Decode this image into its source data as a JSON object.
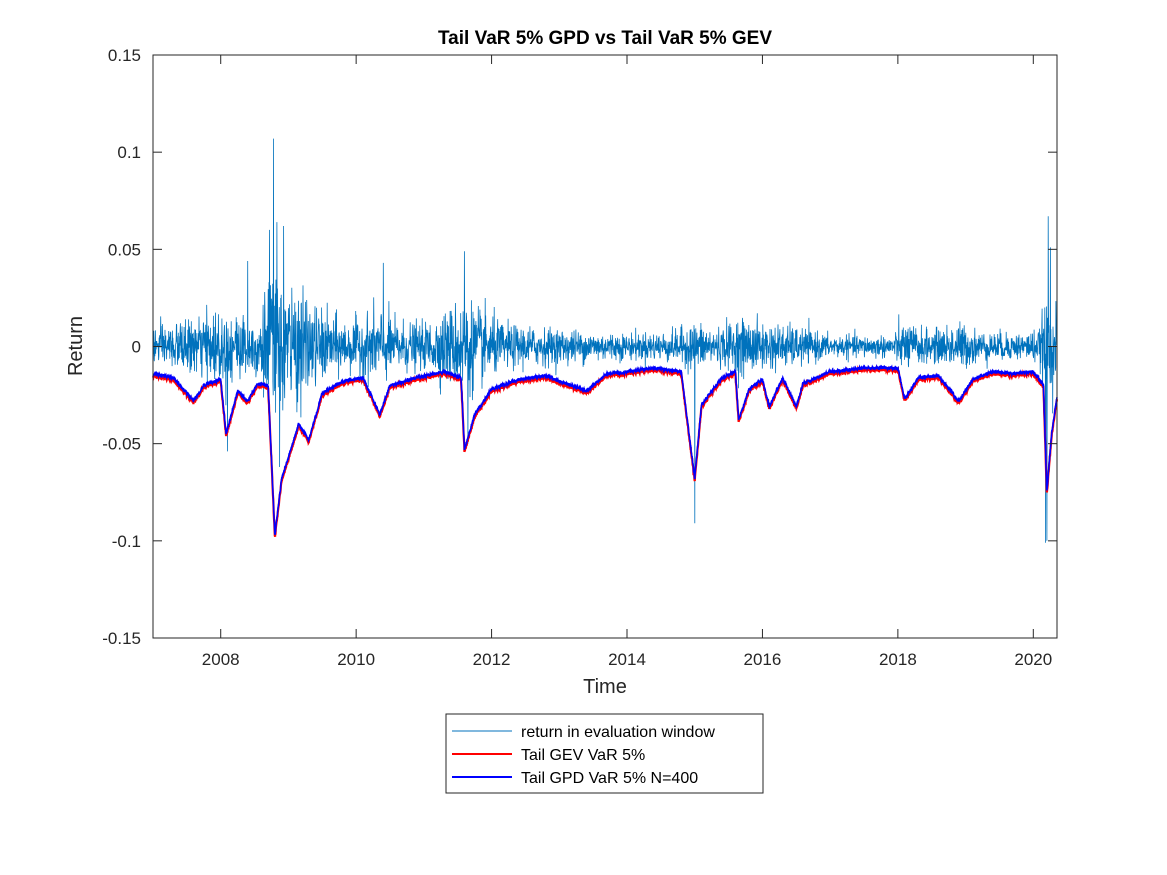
{
  "chart_data": {
    "type": "line",
    "title": "Tail VaR 5% GPD vs Tail VaR 5% GEV",
    "xlabel": "Time",
    "ylabel": "Return",
    "xlim": [
      2007.0,
      2020.35
    ],
    "ylim": [
      -0.15,
      0.15
    ],
    "x_ticks": [
      2008,
      2010,
      2012,
      2014,
      2016,
      2018,
      2020
    ],
    "x_tick_labels": [
      "2008",
      "2010",
      "2012",
      "2014",
      "2016",
      "2018",
      "2020"
    ],
    "y_ticks": [
      -0.15,
      -0.1,
      -0.05,
      0,
      0.05,
      0.1,
      0.15
    ],
    "y_tick_labels": [
      "-0.15",
      "-0.1",
      "-0.05",
      "0",
      "0.05",
      "0.1",
      "0.15"
    ],
    "grid": false,
    "legend_position": "below",
    "series": [
      {
        "name": "return in evaluation window",
        "color": "#0072BD",
        "style": "volatile-returns",
        "volatility_profile": [
          [
            2007.0,
            0.009
          ],
          [
            2007.5,
            0.011
          ],
          [
            2007.9,
            0.016
          ],
          [
            2008.1,
            0.017
          ],
          [
            2008.5,
            0.013
          ],
          [
            2008.75,
            0.033
          ],
          [
            2008.95,
            0.03
          ],
          [
            2009.2,
            0.024
          ],
          [
            2009.5,
            0.016
          ],
          [
            2009.9,
            0.011
          ],
          [
            2010.35,
            0.017
          ],
          [
            2010.6,
            0.012
          ],
          [
            2011.0,
            0.01
          ],
          [
            2011.6,
            0.022
          ],
          [
            2011.9,
            0.016
          ],
          [
            2012.2,
            0.01
          ],
          [
            2013.0,
            0.008
          ],
          [
            2014.0,
            0.006
          ],
          [
            2014.7,
            0.007
          ],
          [
            2015.0,
            0.011
          ],
          [
            2015.3,
            0.008
          ],
          [
            2015.65,
            0.013
          ],
          [
            2016.0,
            0.011
          ],
          [
            2016.5,
            0.009
          ],
          [
            2017.0,
            0.005
          ],
          [
            2017.9,
            0.005
          ],
          [
            2018.1,
            0.011
          ],
          [
            2018.5,
            0.007
          ],
          [
            2018.9,
            0.011
          ],
          [
            2019.2,
            0.007
          ],
          [
            2019.8,
            0.006
          ],
          [
            2020.1,
            0.008
          ],
          [
            2020.2,
            0.03
          ],
          [
            2020.3,
            0.02
          ],
          [
            2020.35,
            0.016
          ]
        ],
        "spikes": [
          [
            2008.78,
            0.107
          ],
          [
            2008.83,
            0.064
          ],
          [
            2008.87,
            -0.062
          ],
          [
            2008.72,
            0.06
          ],
          [
            2008.93,
            0.062
          ],
          [
            2008.1,
            -0.054
          ],
          [
            2008.4,
            0.044
          ],
          [
            2010.4,
            0.043
          ],
          [
            2011.6,
            0.049
          ],
          [
            2011.65,
            -0.05
          ],
          [
            2015.0,
            -0.091
          ],
          [
            2020.18,
            -0.101
          ],
          [
            2020.22,
            0.067
          ],
          [
            2020.25,
            0.051
          ],
          [
            2020.2,
            -0.1
          ]
        ]
      },
      {
        "name": "Tail GEV VaR 5%",
        "color": "#FF0000",
        "style": "var-band",
        "offset": -0.001,
        "profile": [
          [
            2007.0,
            -0.014
          ],
          [
            2007.3,
            -0.016
          ],
          [
            2007.6,
            -0.028
          ],
          [
            2007.75,
            -0.02
          ],
          [
            2008.0,
            -0.017
          ],
          [
            2008.08,
            -0.045
          ],
          [
            2008.25,
            -0.023
          ],
          [
            2008.4,
            -0.028
          ],
          [
            2008.55,
            -0.019
          ],
          [
            2008.7,
            -0.02
          ],
          [
            2008.8,
            -0.097
          ],
          [
            2008.9,
            -0.068
          ],
          [
            2009.0,
            -0.057
          ],
          [
            2009.15,
            -0.04
          ],
          [
            2009.3,
            -0.048
          ],
          [
            2009.5,
            -0.024
          ],
          [
            2009.8,
            -0.018
          ],
          [
            2010.1,
            -0.016
          ],
          [
            2010.35,
            -0.035
          ],
          [
            2010.5,
            -0.02
          ],
          [
            2010.9,
            -0.016
          ],
          [
            2011.3,
            -0.013
          ],
          [
            2011.55,
            -0.016
          ],
          [
            2011.6,
            -0.053
          ],
          [
            2011.75,
            -0.035
          ],
          [
            2012.0,
            -0.022
          ],
          [
            2012.4,
            -0.017
          ],
          [
            2012.8,
            -0.015
          ],
          [
            2013.4,
            -0.023
          ],
          [
            2013.7,
            -0.014
          ],
          [
            2014.0,
            -0.013
          ],
          [
            2014.4,
            -0.011
          ],
          [
            2014.8,
            -0.013
          ],
          [
            2015.0,
            -0.068
          ],
          [
            2015.1,
            -0.03
          ],
          [
            2015.4,
            -0.016
          ],
          [
            2015.6,
            -0.013
          ],
          [
            2015.65,
            -0.038
          ],
          [
            2015.8,
            -0.022
          ],
          [
            2016.0,
            -0.017
          ],
          [
            2016.1,
            -0.031
          ],
          [
            2016.3,
            -0.016
          ],
          [
            2016.5,
            -0.031
          ],
          [
            2016.6,
            -0.019
          ],
          [
            2017.0,
            -0.013
          ],
          [
            2017.5,
            -0.011
          ],
          [
            2018.0,
            -0.011
          ],
          [
            2018.1,
            -0.027
          ],
          [
            2018.3,
            -0.016
          ],
          [
            2018.6,
            -0.015
          ],
          [
            2018.9,
            -0.028
          ],
          [
            2019.1,
            -0.017
          ],
          [
            2019.4,
            -0.013
          ],
          [
            2019.7,
            -0.014
          ],
          [
            2020.0,
            -0.013
          ],
          [
            2020.15,
            -0.02
          ],
          [
            2020.2,
            -0.075
          ],
          [
            2020.27,
            -0.045
          ],
          [
            2020.35,
            -0.026
          ]
        ]
      },
      {
        "name": "Tail GPD VaR 5% N=400",
        "color": "#0000FF",
        "style": "var-band",
        "offset": 0.0,
        "profile": [
          [
            2007.0,
            -0.014
          ],
          [
            2007.3,
            -0.016
          ],
          [
            2007.6,
            -0.028
          ],
          [
            2007.75,
            -0.02
          ],
          [
            2008.0,
            -0.017
          ],
          [
            2008.08,
            -0.045
          ],
          [
            2008.25,
            -0.023
          ],
          [
            2008.4,
            -0.028
          ],
          [
            2008.55,
            -0.019
          ],
          [
            2008.7,
            -0.02
          ],
          [
            2008.8,
            -0.097
          ],
          [
            2008.9,
            -0.068
          ],
          [
            2009.0,
            -0.057
          ],
          [
            2009.15,
            -0.04
          ],
          [
            2009.3,
            -0.048
          ],
          [
            2009.5,
            -0.024
          ],
          [
            2009.8,
            -0.018
          ],
          [
            2010.1,
            -0.016
          ],
          [
            2010.35,
            -0.035
          ],
          [
            2010.5,
            -0.02
          ],
          [
            2010.9,
            -0.016
          ],
          [
            2011.3,
            -0.013
          ],
          [
            2011.55,
            -0.016
          ],
          [
            2011.6,
            -0.053
          ],
          [
            2011.75,
            -0.035
          ],
          [
            2012.0,
            -0.022
          ],
          [
            2012.4,
            -0.017
          ],
          [
            2012.8,
            -0.015
          ],
          [
            2013.4,
            -0.023
          ],
          [
            2013.7,
            -0.014
          ],
          [
            2014.0,
            -0.013
          ],
          [
            2014.4,
            -0.011
          ],
          [
            2014.8,
            -0.013
          ],
          [
            2015.0,
            -0.068
          ],
          [
            2015.1,
            -0.03
          ],
          [
            2015.4,
            -0.016
          ],
          [
            2015.6,
            -0.013
          ],
          [
            2015.65,
            -0.038
          ],
          [
            2015.8,
            -0.022
          ],
          [
            2016.0,
            -0.017
          ],
          [
            2016.1,
            -0.031
          ],
          [
            2016.3,
            -0.016
          ],
          [
            2016.5,
            -0.031
          ],
          [
            2016.6,
            -0.019
          ],
          [
            2017.0,
            -0.013
          ],
          [
            2017.5,
            -0.011
          ],
          [
            2018.0,
            -0.011
          ],
          [
            2018.1,
            -0.027
          ],
          [
            2018.3,
            -0.016
          ],
          [
            2018.6,
            -0.015
          ],
          [
            2018.9,
            -0.028
          ],
          [
            2019.1,
            -0.017
          ],
          [
            2019.4,
            -0.013
          ],
          [
            2019.7,
            -0.014
          ],
          [
            2020.0,
            -0.013
          ],
          [
            2020.15,
            -0.02
          ],
          [
            2020.2,
            -0.075
          ],
          [
            2020.27,
            -0.045
          ],
          [
            2020.35,
            -0.026
          ]
        ]
      }
    ]
  },
  "legend": {
    "items": [
      {
        "label": "return in evaluation window",
        "color": "#0072BD",
        "width": 1
      },
      {
        "label": "Tail GEV VaR 5%",
        "color": "#FF0000",
        "width": 2
      },
      {
        "label": "Tail GPD VaR 5% N=400",
        "color": "#0000FF",
        "width": 2
      }
    ]
  }
}
